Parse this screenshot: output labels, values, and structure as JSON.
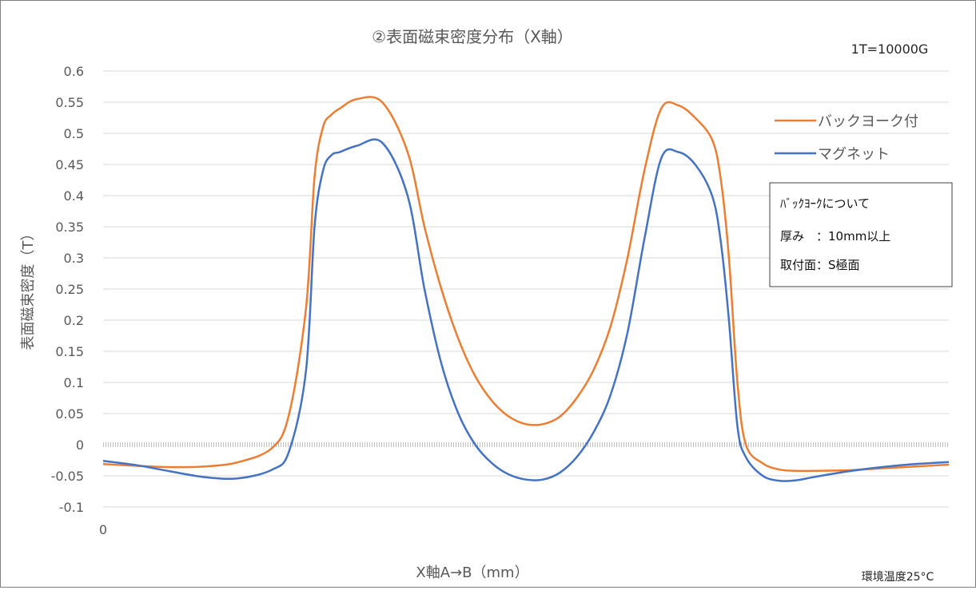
{
  "chart_data": {
    "type": "line",
    "title": "②表面磁束密度分布（X軸）",
    "unit_note": "1T=10000G",
    "xlabel": "X軸A→B（mm）",
    "ylabel": "表面磁束密度（T）",
    "x_tick_labels": [
      "0"
    ],
    "ylim": [
      -0.1,
      0.6
    ],
    "yticks": [
      -0.1,
      -0.05,
      0,
      0.05,
      0.1,
      0.15,
      0.2,
      0.25,
      0.3,
      0.35,
      0.4,
      0.45,
      0.5,
      0.55,
      0.6
    ],
    "ytick_labels": [
      "-0.1",
      "-0.05",
      "0",
      "0.05",
      "0.1",
      "0.15",
      "0.2",
      "0.25",
      "0.3",
      "0.35",
      "0.4",
      "0.45",
      "0.5",
      "0.55",
      "0.6"
    ],
    "grid": true,
    "legend_position": "right",
    "temperature_note": "環境温度25°C",
    "info_box": {
      "line1": "ﾊﾞｯｸﾖｰｸについて",
      "line2": "厚み　：10mm以上",
      "line3": "取付面：S極面"
    },
    "x": [
      0,
      4,
      8,
      12,
      16,
      20,
      22,
      24,
      25,
      26,
      27,
      28,
      30,
      33,
      36,
      38,
      40,
      42,
      44,
      46,
      48,
      50,
      52,
      54,
      56,
      58,
      60,
      62,
      64,
      66,
      68,
      70,
      72,
      73,
      74,
      75,
      76,
      78,
      80,
      82,
      84,
      88,
      92,
      96,
      100
    ],
    "series": [
      {
        "name": "バックヨーク付",
        "color": "#ed7d31",
        "values": [
          -0.031,
          -0.034,
          -0.036,
          -0.035,
          -0.028,
          -0.005,
          0.05,
          0.22,
          0.43,
          0.51,
          0.53,
          0.54,
          0.555,
          0.55,
          0.47,
          0.35,
          0.25,
          0.17,
          0.11,
          0.07,
          0.045,
          0.033,
          0.033,
          0.045,
          0.075,
          0.12,
          0.19,
          0.3,
          0.44,
          0.54,
          0.545,
          0.525,
          0.49,
          0.43,
          0.3,
          0.1,
          0.0,
          -0.03,
          -0.04,
          -0.042,
          -0.042,
          -0.041,
          -0.038,
          -0.035,
          -0.032
        ]
      },
      {
        "name": "マグネット",
        "color": "#4472c4",
        "values": [
          -0.026,
          -0.033,
          -0.043,
          -0.052,
          -0.054,
          -0.04,
          -0.01,
          0.12,
          0.35,
          0.44,
          0.465,
          0.47,
          0.48,
          0.485,
          0.4,
          0.25,
          0.13,
          0.05,
          0.0,
          -0.03,
          -0.048,
          -0.056,
          -0.056,
          -0.045,
          -0.02,
          0.02,
          0.08,
          0.18,
          0.33,
          0.46,
          0.47,
          0.45,
          0.4,
          0.33,
          0.2,
          0.03,
          -0.02,
          -0.05,
          -0.058,
          -0.057,
          -0.052,
          -0.043,
          -0.036,
          -0.031,
          -0.028
        ]
      }
    ],
    "colors": {
      "gridline": "#d9d9d9",
      "zero_line": "#bfbfbf",
      "frame": "#7f7f7f"
    }
  }
}
